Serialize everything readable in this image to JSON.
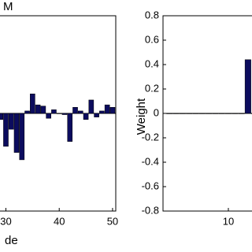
{
  "chart_data": [
    {
      "type": "bar",
      "title": "M",
      "x_label": "de",
      "color": "#0c0c5e",
      "x": [
        29,
        30,
        31,
        32,
        33,
        34,
        35,
        36,
        37,
        38,
        39,
        40,
        41,
        42,
        43,
        44,
        45,
        46,
        47,
        48,
        49,
        50
      ],
      "values": [
        -0.05,
        -0.27,
        -0.13,
        -0.32,
        -0.38,
        0.02,
        0.16,
        0.07,
        0.06,
        -0.04,
        0.03,
        0.0,
        -0.01,
        -0.23,
        0.05,
        0.02,
        -0.05,
        0.11,
        -0.03,
        0.02,
        0.07,
        0.05
      ],
      "xlim": [
        28.6,
        50.6
      ],
      "xticks": [
        30,
        40,
        50
      ],
      "ylim": [
        -0.8,
        0.8
      ]
    },
    {
      "type": "bar",
      "y_label": "Weight",
      "color": "#0c0c5e",
      "x": [
        1,
        2,
        3,
        4,
        5,
        6,
        7,
        8,
        9,
        10,
        11,
        12,
        13,
        14
      ],
      "values": [
        0,
        0,
        0,
        0,
        0,
        0,
        0,
        0,
        0,
        0,
        0,
        0,
        0.44,
        0
      ],
      "xlim": [
        0,
        14.1
      ],
      "xticks": [
        10
      ],
      "ylim": [
        -0.8,
        0.8
      ],
      "yticks": [
        0.8,
        0.6,
        0.4,
        0.2,
        0,
        -0.2,
        -0.4,
        -0.6,
        -0.8
      ]
    }
  ]
}
